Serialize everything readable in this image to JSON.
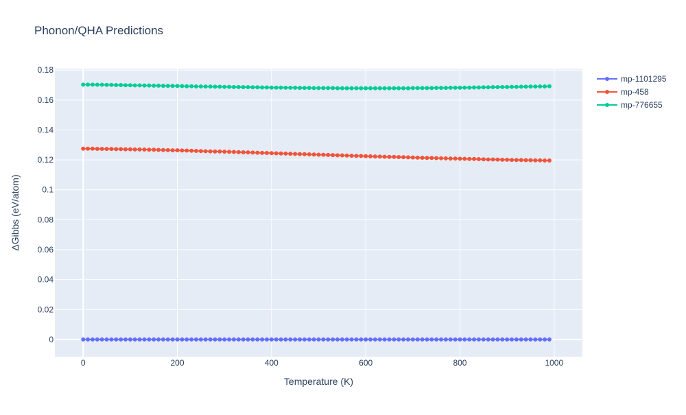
{
  "chart_data": {
    "type": "line",
    "title": "Phonon/QHA Predictions",
    "xlabel": "Temperature (K)",
    "ylabel": "ΔGibbs (eV/atom)",
    "xlim": [
      -60,
      1060
    ],
    "ylim": [
      -0.0115,
      0.181
    ],
    "x_ticks": [
      0,
      200,
      400,
      600,
      800,
      1000
    ],
    "y_ticks": [
      0,
      0.02,
      0.04,
      0.06,
      0.08,
      0.1,
      0.12,
      0.14,
      0.16,
      0.18
    ],
    "x_tick_labels": [
      "0",
      "200",
      "400",
      "600",
      "800",
      "1000"
    ],
    "y_tick_labels": [
      "0",
      "0.02",
      "0.04",
      "0.06",
      "0.08",
      "0.1",
      "0.12",
      "0.14",
      "0.16",
      "0.18"
    ],
    "grid": true,
    "legend_position": "top-right",
    "x": [
      0,
      10,
      20,
      30,
      40,
      50,
      60,
      70,
      80,
      90,
      100,
      110,
      120,
      130,
      140,
      150,
      160,
      170,
      180,
      190,
      200,
      210,
      220,
      230,
      240,
      250,
      260,
      270,
      280,
      290,
      300,
      310,
      320,
      330,
      340,
      350,
      360,
      370,
      380,
      390,
      400,
      410,
      420,
      430,
      440,
      450,
      460,
      470,
      480,
      490,
      500,
      510,
      520,
      530,
      540,
      550,
      560,
      570,
      580,
      590,
      600,
      610,
      620,
      630,
      640,
      650,
      660,
      670,
      680,
      690,
      700,
      710,
      720,
      730,
      740,
      750,
      760,
      770,
      780,
      790,
      800,
      810,
      820,
      830,
      840,
      850,
      860,
      870,
      880,
      890,
      900,
      910,
      920,
      930,
      940,
      950,
      960,
      970,
      980,
      990
    ],
    "series": [
      {
        "name": "mp-1101295",
        "color": "#636efa",
        "values": [
          0,
          0,
          0,
          0,
          0,
          0,
          0,
          0,
          0,
          0,
          0,
          0,
          0,
          0,
          0,
          0,
          0,
          0,
          0,
          0,
          0,
          0,
          0,
          0,
          0,
          0,
          0,
          0,
          0,
          0,
          0,
          0,
          0,
          0,
          0,
          0,
          0,
          0,
          0,
          0,
          0,
          0,
          0,
          0,
          0,
          0,
          0,
          0,
          0,
          0,
          0,
          0,
          0,
          0,
          0,
          0,
          0,
          0,
          0,
          0,
          0,
          0,
          0,
          0,
          0,
          0,
          0,
          0,
          0,
          0,
          0,
          0,
          0,
          0,
          0,
          0,
          0,
          0,
          0,
          0,
          0,
          0,
          0,
          0,
          0,
          0,
          0,
          0,
          0,
          0,
          0,
          0,
          0,
          0,
          0,
          0,
          0,
          0,
          0,
          0
        ]
      },
      {
        "name": "mp-458",
        "color": "#ef553b",
        "values": [
          0.1275,
          0.1275,
          0.1275,
          0.1274,
          0.1274,
          0.1273,
          0.1273,
          0.1272,
          0.1272,
          0.1271,
          0.1271,
          0.127,
          0.127,
          0.1269,
          0.1268,
          0.1268,
          0.1267,
          0.1266,
          0.1265,
          0.1264,
          0.1264,
          0.1263,
          0.1262,
          0.1261,
          0.126,
          0.1259,
          0.1258,
          0.1257,
          0.1256,
          0.1256,
          0.1255,
          0.1254,
          0.1253,
          0.1252,
          0.1251,
          0.125,
          0.1249,
          0.1248,
          0.1247,
          0.1246,
          0.1245,
          0.1244,
          0.1243,
          0.1242,
          0.1241,
          0.124,
          0.1239,
          0.1238,
          0.1237,
          0.1236,
          0.1235,
          0.1234,
          0.1233,
          0.1232,
          0.1231,
          0.123,
          0.1229,
          0.1228,
          0.1227,
          0.1226,
          0.1225,
          0.1224,
          0.1223,
          0.1222,
          0.1221,
          0.122,
          0.122,
          0.1219,
          0.1218,
          0.1217,
          0.1216,
          0.1215,
          0.1214,
          0.1213,
          0.1213,
          0.1212,
          0.1211,
          0.121,
          0.1209,
          0.1209,
          0.1208,
          0.1207,
          0.1206,
          0.1206,
          0.1205,
          0.1204,
          0.1203,
          0.1203,
          0.1202,
          0.1201,
          0.1201,
          0.12,
          0.1199,
          0.1199,
          0.1198,
          0.1198,
          0.1197,
          0.1197,
          0.1196,
          0.1196
        ]
      },
      {
        "name": "mp-776655",
        "color": "#00cc96",
        "values": [
          0.1703,
          0.1703,
          0.1703,
          0.1702,
          0.1702,
          0.1701,
          0.1701,
          0.17,
          0.17,
          0.1699,
          0.1699,
          0.1698,
          0.1698,
          0.1697,
          0.1697,
          0.1696,
          0.1696,
          0.1695,
          0.1695,
          0.1694,
          0.1694,
          0.1693,
          0.1692,
          0.1692,
          0.1691,
          0.1691,
          0.169,
          0.169,
          0.1689,
          0.1689,
          0.1688,
          0.1688,
          0.1687,
          0.1687,
          0.1686,
          0.1686,
          0.1685,
          0.1685,
          0.1684,
          0.1684,
          0.1683,
          0.1683,
          0.1683,
          0.1682,
          0.1682,
          0.1682,
          0.1681,
          0.1681,
          0.1681,
          0.168,
          0.168,
          0.168,
          0.168,
          0.168,
          0.1679,
          0.1679,
          0.1679,
          0.1679,
          0.1679,
          0.1679,
          0.1679,
          0.1679,
          0.1679,
          0.1679,
          0.1679,
          0.1679,
          0.1679,
          0.1679,
          0.1679,
          0.1679,
          0.168,
          0.168,
          0.168,
          0.168,
          0.168,
          0.1681,
          0.1681,
          0.1681,
          0.1682,
          0.1682,
          0.1682,
          0.1683,
          0.1683,
          0.1684,
          0.1684,
          0.1685,
          0.1685,
          0.1686,
          0.1686,
          0.1687,
          0.1687,
          0.1688,
          0.1688,
          0.1689,
          0.1689,
          0.169,
          0.169,
          0.1691,
          0.1691,
          0.1692
        ]
      }
    ]
  }
}
